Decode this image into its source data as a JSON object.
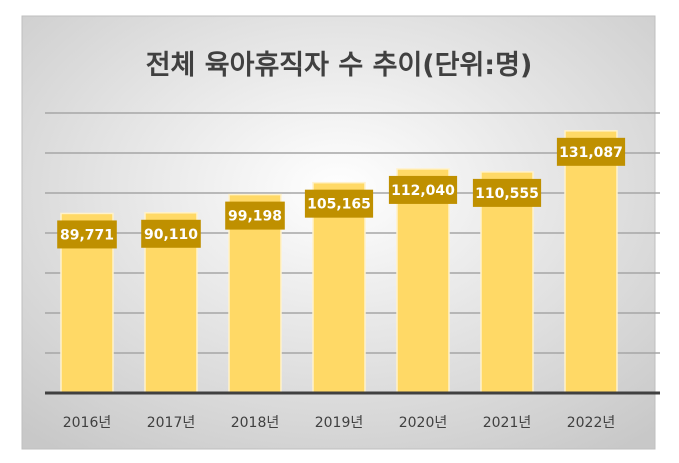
{
  "chart_data": {
    "type": "bar",
    "title": "전체 육아휴직자 수 추이(단위:명)",
    "categories": [
      "2016년",
      "2017년",
      "2018년",
      "2019년",
      "2020년",
      "2021년",
      "2022년"
    ],
    "values": [
      89771,
      90110,
      99198,
      105165,
      112040,
      110555,
      131087
    ],
    "data_labels": [
      "89,771",
      "90,110",
      "99,198",
      "105,165",
      "112,040",
      "110,555",
      "131,087"
    ],
    "xlabel": "",
    "ylabel": "",
    "ylim": [
      0,
      140000
    ],
    "ytick_step": 20000,
    "grid": true,
    "legend": "none",
    "colors": {
      "bar": "#FFD966",
      "bar_edge": "#FFF2CC",
      "label_bg": "#BF9000",
      "grid": "#A6A6A6",
      "axis": "#404040"
    }
  }
}
